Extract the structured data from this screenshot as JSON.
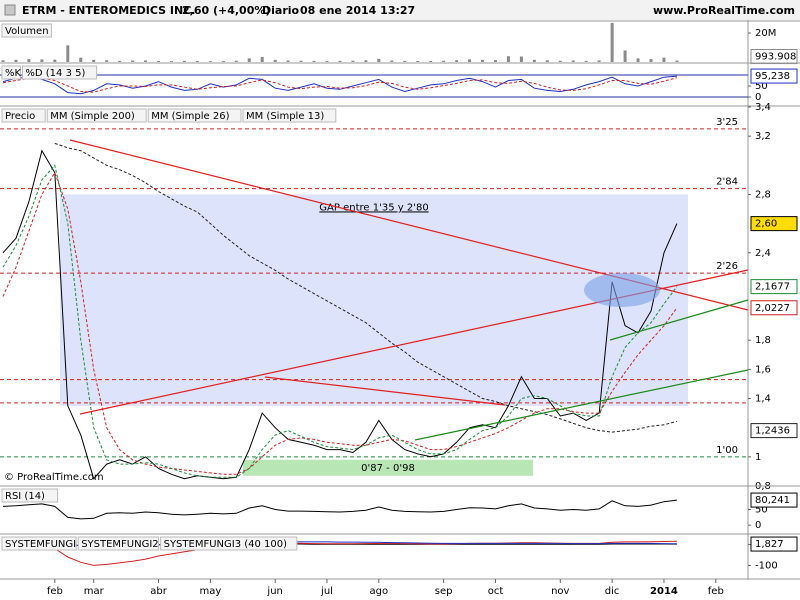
{
  "header": {
    "symbol": "ETRM - ENTEROMEDICS INC.",
    "quote": "2,60 (+4,00%)",
    "period": "Diario",
    "datetime": "08 ene 2014 13:27",
    "site": "www.ProRealTime.com"
  },
  "chart_data": [
    {
      "type": "bar",
      "title": "Volumen",
      "color": "#8a8a8a",
      "values": [
        1200000,
        1500000,
        2000000,
        1800000,
        1600000,
        11500000,
        3000000,
        1500000,
        1200000,
        800000,
        1000000,
        1100000,
        700000,
        600000,
        800000,
        700000,
        600000,
        700000,
        900000,
        2500000,
        3500000,
        1500000,
        1000000,
        900000,
        800000,
        700000,
        800000,
        900000,
        1200000,
        2200000,
        1000000,
        800000,
        700000,
        700000,
        900000,
        1200000,
        1800000,
        1500000,
        1300000,
        4000000,
        3800000,
        1500000,
        1200000,
        900000,
        1000000,
        800000,
        1100000,
        27000000,
        8000000,
        2500000,
        2000000,
        3000000,
        993908,
        null,
        null,
        null,
        null,
        null
      ],
      "last_label": "993.908",
      "ylim": [
        0,
        27600000
      ],
      "yticks": [
        {
          "value": 20000000,
          "label": "20M"
        }
      ]
    },
    {
      "type": "line",
      "ylim": [
        -27,
        150
      ],
      "yticks": [
        50,
        0
      ],
      "hlines": [
        100,
        0
      ],
      "hline_color": "#2030a0",
      "series": [
        {
          "name": "%K",
          "color": "#2030c0",
          "dash": false,
          "last_label": "95,238",
          "values": [
            70,
            85,
            90,
            80,
            60,
            20,
            15,
            30,
            60,
            55,
            40,
            50,
            70,
            45,
            30,
            35,
            60,
            45,
            55,
            85,
            80,
            40,
            30,
            45,
            60,
            40,
            35,
            50,
            65,
            80,
            45,
            25,
            40,
            55,
            60,
            75,
            85,
            70,
            45,
            75,
            80,
            40,
            30,
            25,
            35,
            55,
            70,
            90,
            60,
            50,
            70,
            90,
            95.238,
            null,
            null,
            null,
            null,
            null
          ]
        },
        {
          "name": "%D (14 3 5)",
          "color": "#d02020",
          "dash": true,
          "values": [
            65,
            75,
            85,
            85,
            75,
            50,
            25,
            22,
            38,
            50,
            50,
            48,
            55,
            55,
            45,
            35,
            42,
            48,
            50,
            65,
            78,
            65,
            45,
            38,
            45,
            48,
            40,
            42,
            52,
            68,
            62,
            45,
            35,
            42,
            52,
            62,
            75,
            78,
            65,
            62,
            72,
            62,
            45,
            32,
            30,
            38,
            55,
            75,
            75,
            62,
            58,
            72,
            88,
            null,
            null,
            null,
            null,
            null
          ]
        }
      ]
    },
    {
      "type": "line",
      "title": "Precio",
      "categories": [
        null,
        null,
        null,
        null,
        "feb",
        null,
        null,
        "mar",
        null,
        null,
        null,
        null,
        "abr",
        null,
        null,
        null,
        "may",
        null,
        null,
        null,
        null,
        "jun",
        null,
        null,
        null,
        "jul",
        null,
        null,
        null,
        "ago",
        null,
        null,
        null,
        null,
        "sep",
        null,
        null,
        null,
        "oct",
        null,
        null,
        null,
        null,
        "nov",
        null,
        null,
        null,
        "dic",
        null,
        null,
        null,
        "2014",
        null,
        null,
        null,
        "feb",
        null,
        null
      ],
      "ylim": [
        0.8,
        3.4
      ],
      "yticks": [
        {
          "value": 3.4,
          "label": "3,4"
        },
        {
          "value": 3.2,
          "label": "3,2"
        },
        {
          "value": 2.8,
          "label": "2,8"
        },
        {
          "value": 2.4,
          "label": "2,4"
        },
        {
          "value": 1.8,
          "label": "1,8"
        },
        {
          "value": 1.6,
          "label": "1,6"
        },
        {
          "value": 1.4,
          "label": "1,4"
        },
        1,
        {
          "value": 0.8,
          "label": "0,8"
        }
      ],
      "series": [
        {
          "name": "Precio",
          "color": "#000000",
          "dash": false,
          "last_label": "2,60",
          "label_color": "#ffdd00",
          "values": [
            2.4,
            2.5,
            2.75,
            3.1,
            2.95,
            1.35,
            1.15,
            0.85,
            0.95,
            0.98,
            0.95,
            1.0,
            0.92,
            0.88,
            0.85,
            0.87,
            0.86,
            0.85,
            0.86,
            1.05,
            1.3,
            1.2,
            1.12,
            1.1,
            1.08,
            1.05,
            1.05,
            1.03,
            1.1,
            1.25,
            1.12,
            1.05,
            1.02,
            1.0,
            1.02,
            1.1,
            1.2,
            1.22,
            1.2,
            1.35,
            1.55,
            1.4,
            1.4,
            1.28,
            1.3,
            1.25,
            1.3,
            2.2,
            1.9,
            1.85,
            2.0,
            2.4,
            2.6,
            null,
            null,
            null,
            null,
            null
          ]
        },
        {
          "name": "MM (Simple 200)",
          "color": "#222222",
          "dash": true,
          "last_label": "1,2436",
          "values": [
            null,
            null,
            null,
            null,
            3.15,
            3.12,
            3.1,
            3.05,
            3.0,
            2.97,
            2.93,
            2.88,
            2.82,
            2.77,
            2.72,
            2.68,
            2.6,
            2.52,
            2.45,
            2.38,
            2.33,
            2.28,
            2.22,
            2.17,
            2.12,
            2.07,
            2.02,
            1.97,
            1.92,
            1.85,
            1.78,
            1.72,
            1.65,
            1.6,
            1.55,
            1.5,
            1.45,
            1.4,
            1.38,
            1.35,
            1.33,
            1.31,
            1.29,
            1.26,
            1.23,
            1.2,
            1.18,
            1.17,
            1.18,
            1.19,
            1.21,
            1.22,
            1.2436,
            null,
            null,
            null,
            null,
            null
          ]
        },
        {
          "name": "MM (Simple 26)",
          "color": "#d02020",
          "dash": true,
          "last_label": "2,0227",
          "values": [
            2.1,
            2.3,
            2.55,
            2.8,
            2.95,
            2.7,
            2.2,
            1.6,
            1.2,
            1.05,
            0.98,
            0.95,
            0.93,
            0.92,
            0.91,
            0.9,
            0.89,
            0.88,
            0.88,
            0.92,
            1.0,
            1.08,
            1.12,
            1.13,
            1.12,
            1.1,
            1.09,
            1.08,
            1.08,
            1.1,
            1.12,
            1.11,
            1.08,
            1.05,
            1.05,
            1.07,
            1.1,
            1.13,
            1.16,
            1.2,
            1.25,
            1.3,
            1.33,
            1.33,
            1.31,
            1.3,
            1.3,
            1.45,
            1.58,
            1.7,
            1.8,
            1.9,
            2.0227,
            null,
            null,
            null,
            null,
            null
          ]
        },
        {
          "name": "MM (Simple 13)",
          "color": "#1a8a3a",
          "dash": true,
          "last_label": "2,1677",
          "values": [
            2.3,
            2.45,
            2.65,
            2.9,
            3.0,
            2.6,
            1.8,
            1.2,
            0.98,
            0.95,
            0.95,
            0.96,
            0.95,
            0.92,
            0.89,
            0.87,
            0.86,
            0.86,
            0.86,
            0.92,
            1.05,
            1.15,
            1.18,
            1.14,
            1.1,
            1.07,
            1.06,
            1.05,
            1.08,
            1.13,
            1.15,
            1.1,
            1.05,
            1.02,
            1.02,
            1.05,
            1.12,
            1.18,
            1.2,
            1.28,
            1.4,
            1.42,
            1.4,
            1.35,
            1.3,
            1.28,
            1.28,
            1.55,
            1.75,
            1.85,
            1.92,
            2.05,
            2.1677,
            null,
            null,
            null,
            null,
            null
          ]
        }
      ],
      "levels": [
        {
          "value": 3.25,
          "label": "3'25",
          "color": "#d02020"
        },
        {
          "value": 2.84,
          "label": "2'84",
          "color": "#d02020"
        },
        {
          "value": 2.26,
          "label": "2'26",
          "color": "#d02020"
        },
        {
          "value": 1.0,
          "label": "1'00",
          "color": "#1a8a3a"
        }
      ],
      "hlines": [
        1.53,
        1.37
      ],
      "zones": [
        {
          "label": "GAP entre 1'35 y 2'80",
          "low": 1.35,
          "high": 2.8,
          "color": "#dde3fa"
        },
        {
          "label": "0'87 - 0'98",
          "low": 0.87,
          "high": 0.98,
          "color": "#b9e6b5"
        }
      ],
      "watermark": "© ProRealTime.com"
    },
    {
      "type": "line",
      "ylim": [
        -25,
        122
      ],
      "yticks": [
        50,
        0
      ],
      "series": [
        {
          "name": "RSI (14)",
          "color": "#000000",
          "dash": false,
          "last_label": "80,241",
          "values": [
            60,
            62,
            65,
            68,
            60,
            25,
            20,
            22,
            38,
            40,
            38,
            42,
            40,
            35,
            33,
            35,
            38,
            36,
            38,
            55,
            62,
            50,
            45,
            45,
            44,
            43,
            42,
            44,
            48,
            58,
            48,
            44,
            43,
            42,
            44,
            50,
            56,
            55,
            52,
            62,
            68,
            55,
            52,
            48,
            50,
            48,
            52,
            78,
            62,
            60,
            64,
            75,
            80.241,
            null,
            null,
            null,
            null,
            null
          ]
        }
      ]
    },
    {
      "type": "line",
      "ylim": [
        -160,
        45
      ],
      "yticks": [
        0,
        -100
      ],
      "series": [
        {
          "name": "SYSTEMFUNGI",
          "color": "#000000",
          "dash": false,
          "last_label": "1,827",
          "values": [
            0,
            1,
            2,
            2,
            1,
            -3,
            -6,
            -8,
            -7,
            -5,
            -3,
            -2,
            -1,
            0,
            0,
            0,
            0,
            0,
            0,
            1,
            2,
            2,
            2,
            2,
            1,
            1,
            1,
            1,
            1,
            1,
            1,
            1,
            1,
            1,
            1,
            1,
            1,
            1,
            1,
            1,
            1,
            1,
            1,
            1,
            1,
            1,
            1,
            2,
            2,
            2,
            2,
            2,
            1.827,
            null,
            null,
            null,
            null,
            null
          ]
        },
        {
          "name": "SYSTEMFUNGI2",
          "color": "#d02020",
          "dash": false,
          "values": [
            -5,
            -8,
            -10,
            -10,
            -20,
            -60,
            -85,
            -100,
            -95,
            -88,
            -80,
            -70,
            -55,
            -45,
            -35,
            -25,
            -15,
            -10,
            -5,
            0,
            5,
            5,
            5,
            5,
            4,
            3,
            3,
            3,
            4,
            5,
            5,
            4,
            3,
            2,
            2,
            3,
            5,
            6,
            6,
            7,
            8,
            8,
            7,
            6,
            5,
            5,
            5,
            10,
            12,
            12,
            13,
            14,
            15,
            null,
            null,
            null,
            null,
            null
          ]
        },
        {
          "name": "SYSTEMFUNGI3 (40 100)",
          "color": "#2030c0",
          "dash": false,
          "values": [
            0,
            0,
            1,
            1,
            0,
            -2,
            -4,
            -6,
            -6,
            -5,
            -4,
            -3,
            -2,
            -1,
            0,
            1,
            2,
            4,
            6,
            8,
            10,
            11,
            12,
            12,
            12,
            12,
            11,
            11,
            10,
            10,
            9,
            8,
            7,
            6,
            5,
            5,
            5,
            5,
            5,
            5,
            5,
            5,
            5,
            5,
            4,
            4,
            4,
            5,
            5,
            5,
            5,
            4,
            3,
            null,
            null,
            null,
            null,
            null
          ]
        }
      ]
    }
  ]
}
